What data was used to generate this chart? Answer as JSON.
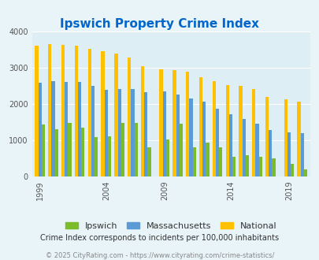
{
  "title": "Ipswich Property Crime Index",
  "title_color": "#0066cc",
  "years": [
    1999,
    2000,
    2001,
    2002,
    2003,
    2004,
    2005,
    2006,
    2007,
    2009,
    2010,
    2011,
    2012,
    2013,
    2014,
    2015,
    2016,
    2017,
    2019,
    2020
  ],
  "ipswich": [
    1430,
    1310,
    1480,
    1340,
    1090,
    1110,
    1490,
    1480,
    810,
    1020,
    1460,
    800,
    940,
    820,
    550,
    600,
    560,
    510,
    350,
    200
  ],
  "massachusetts": [
    2580,
    2630,
    2610,
    2600,
    2490,
    2380,
    2420,
    2420,
    2320,
    2340,
    2270,
    2150,
    2060,
    1870,
    1710,
    1590,
    1460,
    1280,
    1210,
    1200
  ],
  "national": [
    3610,
    3650,
    3630,
    3600,
    3510,
    3450,
    3380,
    3280,
    3040,
    2960,
    2930,
    2880,
    2730,
    2620,
    2510,
    2490,
    2420,
    2200,
    2120,
    2060
  ],
  "ipswich_color": "#7cbb2a",
  "massachusetts_color": "#5b9bd5",
  "national_color": "#ffc000",
  "bg_color": "#e8f4f8",
  "plot_bg_color": "#deeef5",
  "ylim": [
    0,
    4000
  ],
  "yticks": [
    0,
    1000,
    2000,
    3000,
    4000
  ],
  "xlabel_ticks": [
    1999,
    2004,
    2009,
    2014,
    2019
  ],
  "subtitle": "Crime Index corresponds to incidents per 100,000 inhabitants",
  "footer": "© 2025 CityRating.com - https://www.cityrating.com/crime-statistics/",
  "subtitle_color": "#333333",
  "footer_color": "#888888"
}
